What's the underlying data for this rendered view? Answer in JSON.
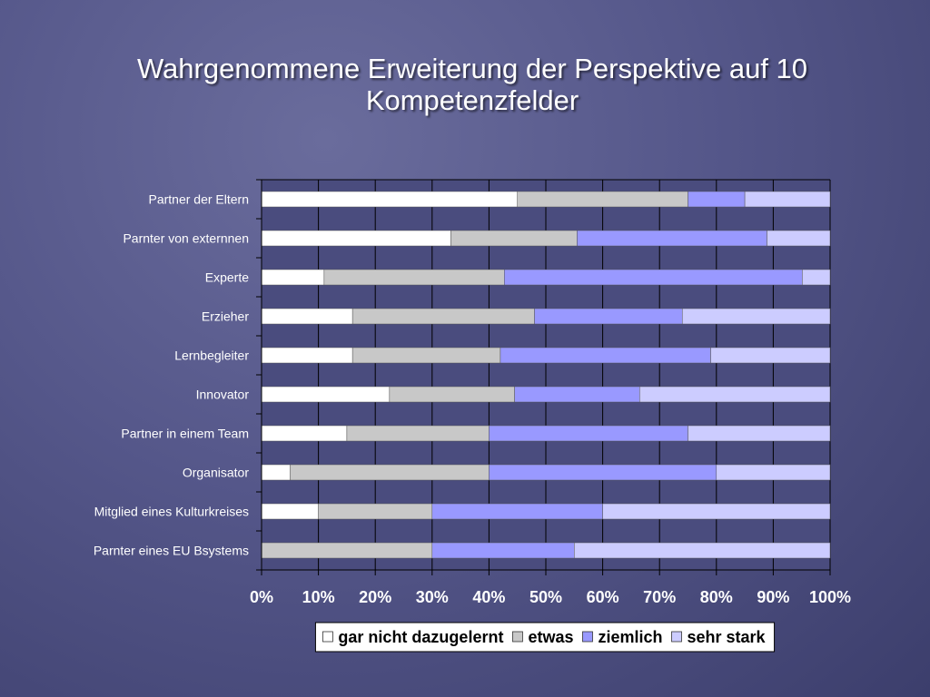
{
  "title": "Wahrgenommene Erweiterung der Perspektive auf 10 Kompetenzfelder",
  "chart_data": {
    "type": "bar",
    "orientation": "horizontal",
    "stacked": "percent",
    "categories": [
      "Partner der Eltern",
      "Parnter von externnen",
      "Experte",
      "Erzieher",
      "Lernbegleiter",
      "Innovator",
      "Partner in einem Team",
      "Organisator",
      "Mitglied eines Kulturkreises",
      "Parnter eines EU Bsystems"
    ],
    "series": [
      {
        "name": "gar nicht dazugelernt",
        "color": "#ffffff",
        "values": [
          45,
          33.3,
          11,
          16,
          16,
          22.5,
          15,
          5,
          10,
          0
        ]
      },
      {
        "name": "etwas",
        "color": "#c8c8c8",
        "values": [
          30,
          22.2,
          31.7,
          32,
          26,
          22,
          25,
          35,
          20,
          30
        ]
      },
      {
        "name": "ziemlich",
        "color": "#9999ff",
        "values": [
          10,
          33.4,
          52.4,
          26,
          37,
          22,
          35,
          40,
          30,
          25
        ]
      },
      {
        "name": "sehr stark",
        "color": "#ccccff",
        "values": [
          15,
          11.1,
          4.9,
          26,
          21,
          33.5,
          25,
          20,
          40,
          45
        ]
      }
    ],
    "xticks": [
      "0%",
      "10%",
      "20%",
      "30%",
      "40%",
      "50%",
      "60%",
      "70%",
      "80%",
      "90%",
      "100%"
    ],
    "xlim": [
      0,
      100
    ],
    "grid": true,
    "legend_position": "bottom"
  }
}
